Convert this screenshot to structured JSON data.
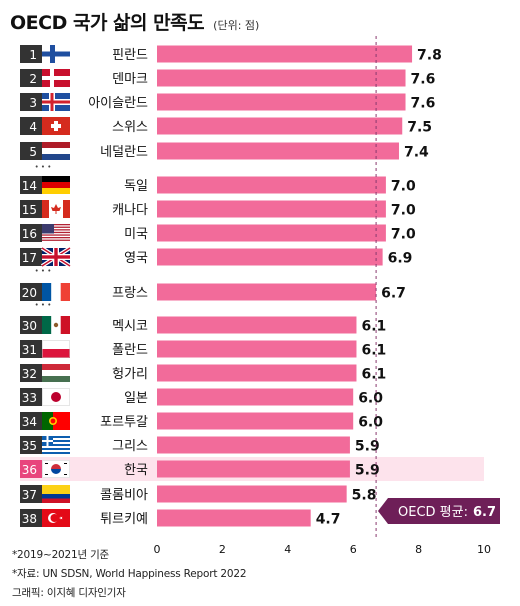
{
  "title": "OECD 국가 삶의 만족도",
  "unit": "(단위: 점)",
  "colors": {
    "bar": "#f26b9a",
    "highlight_bg": "#fde3ec",
    "highlight_badge": "#e8457d",
    "badge": "#333333",
    "avg_line": "#8a3a6e",
    "avg_label_bg": "#6e1f58",
    "text": "#111111"
  },
  "average_label": "OECD 평균:",
  "average_value_label": "6.7",
  "ellipsis": "• • •",
  "footnotes": [
    "*2019~2021년 기준",
    "*자료: UN SDSN, World Happiness Report 2022",
    "그래픽: 이지혜 디자인기자"
  ],
  "chart_data": {
    "type": "bar",
    "orientation": "horizontal",
    "title": "OECD 국가 삶의 만족도",
    "unit": "점",
    "xlim": [
      0,
      10
    ],
    "ticks": [
      0,
      2,
      4,
      6,
      8,
      10
    ],
    "tick_labels": [
      "0",
      "2",
      "4",
      "6",
      "8",
      "10"
    ],
    "average": 6.7,
    "highlight": "한국",
    "rows": [
      {
        "rank": "1",
        "country": "핀란드",
        "value": 7.8,
        "label": "7.8",
        "flag": "finland-flag"
      },
      {
        "rank": "2",
        "country": "덴마크",
        "value": 7.6,
        "label": "7.6",
        "flag": "denmark-flag"
      },
      {
        "rank": "3",
        "country": "아이슬란드",
        "value": 7.6,
        "label": "7.6",
        "flag": "iceland-flag"
      },
      {
        "rank": "4",
        "country": "스위스",
        "value": 7.5,
        "label": "7.5",
        "flag": "switzerland-flag"
      },
      {
        "rank": "5",
        "country": "네덜란드",
        "value": 7.4,
        "label": "7.4",
        "flag": "netherlands-flag"
      },
      {
        "rank": "14",
        "country": "독일",
        "value": 7.0,
        "label": "7.0",
        "flag": "germany-flag"
      },
      {
        "rank": "15",
        "country": "캐나다",
        "value": 7.0,
        "label": "7.0",
        "flag": "canada-flag"
      },
      {
        "rank": "16",
        "country": "미국",
        "value": 7.0,
        "label": "7.0",
        "flag": "usa-flag"
      },
      {
        "rank": "17",
        "country": "영국",
        "value": 6.9,
        "label": "6.9",
        "flag": "uk-flag"
      },
      {
        "rank": "20",
        "country": "프랑스",
        "value": 6.7,
        "label": "6.7",
        "flag": "france-flag"
      },
      {
        "rank": "30",
        "country": "멕시코",
        "value": 6.1,
        "label": "6.1",
        "flag": "mexico-flag"
      },
      {
        "rank": "31",
        "country": "폴란드",
        "value": 6.1,
        "label": "6.1",
        "flag": "poland-flag"
      },
      {
        "rank": "32",
        "country": "헝가리",
        "value": 6.1,
        "label": "6.1",
        "flag": "hungary-flag"
      },
      {
        "rank": "33",
        "country": "일본",
        "value": 6.0,
        "label": "6.0",
        "flag": "japan-flag"
      },
      {
        "rank": "34",
        "country": "포르투갈",
        "value": 6.0,
        "label": "6.0",
        "flag": "portugal-flag"
      },
      {
        "rank": "35",
        "country": "그리스",
        "value": 5.9,
        "label": "5.9",
        "flag": "greece-flag"
      },
      {
        "rank": "36",
        "country": "한국",
        "value": 5.9,
        "label": "5.9",
        "flag": "korea-flag"
      },
      {
        "rank": "37",
        "country": "콜롬비아",
        "value": 5.8,
        "label": "5.8",
        "flag": "colombia-flag"
      },
      {
        "rank": "38",
        "country": "튀르키예",
        "value": 4.7,
        "label": "4.7",
        "flag": "turkey-flag"
      }
    ]
  }
}
